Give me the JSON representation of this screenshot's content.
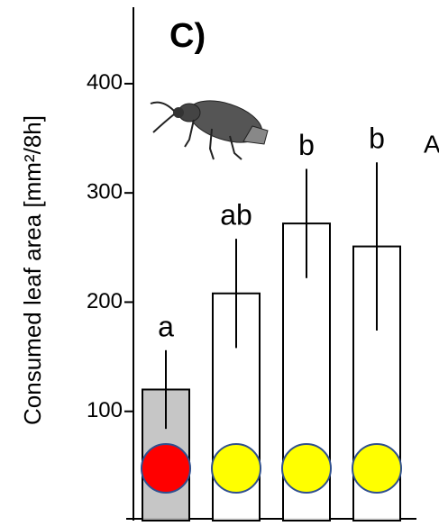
{
  "chart_data": {
    "type": "bar",
    "title": "C)",
    "ylabel": "Consumed leaf area [mm²/8h]",
    "categories": [
      null,
      null,
      null,
      null
    ],
    "values": [
      120,
      208,
      272,
      251
    ],
    "errors": [
      36,
      50,
      50,
      77
    ],
    "value_labels": [
      "a",
      "ab",
      "b",
      "b"
    ],
    "colors": [
      "#c0c0c0",
      "#ffffff",
      "#ffffff",
      "#ffffff"
    ],
    "marker_colors": [
      "#ff0000",
      "#ffff00",
      "#ffff00",
      "#ffff00"
    ],
    "annotation": "A",
    "ylim": [
      0,
      470
    ],
    "yticks": [
      100,
      200,
      300,
      400
    ],
    "grid": false
  }
}
